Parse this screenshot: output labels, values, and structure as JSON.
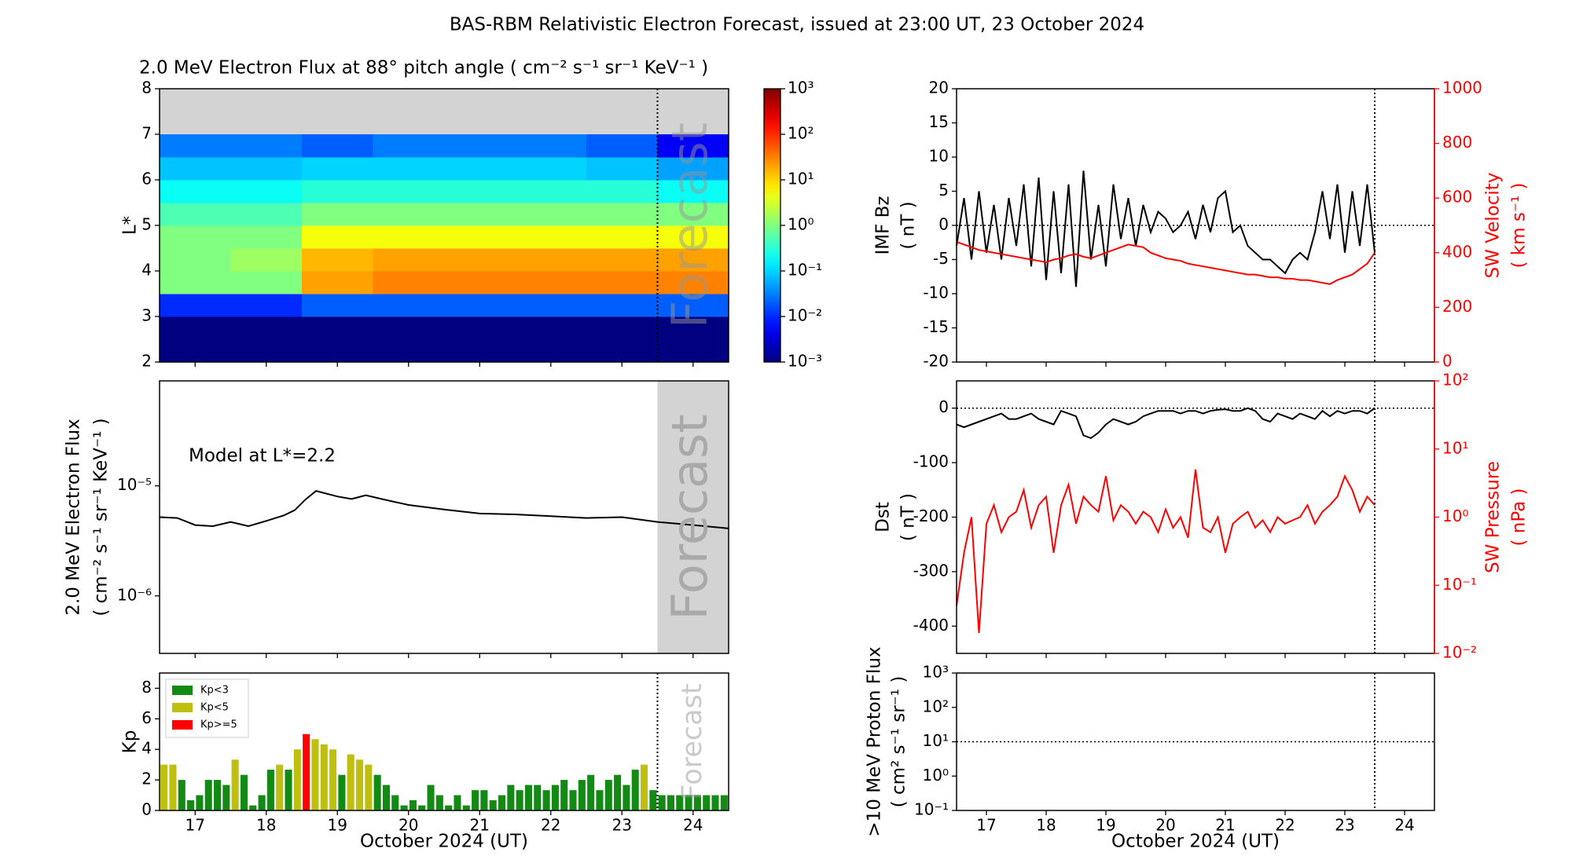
{
  "title": "BAS-RBM Relativistic Electron Forecast, issued at 23:00 UT, 23 October 2024",
  "chart_data": [
    {
      "type": "heatmap",
      "title": "2.0 MeV Electron Flux at 88° pitch angle ( cm⁻² s⁻¹ sr⁻¹ KeV⁻¹ )",
      "y_label": [
        "L*"
      ],
      "xlim": [
        16.5,
        24.5
      ],
      "ylim": [
        2,
        8
      ],
      "yticks": [
        2,
        3,
        4,
        5,
        6,
        7,
        8
      ],
      "x_bins": [
        16.5,
        17.5,
        18.5,
        19.5,
        20.5,
        21.5,
        22.5,
        23.5,
        24.5
      ],
      "y_bins": [
        2,
        2.5,
        3,
        3.5,
        4,
        4.5,
        5,
        5.5,
        6,
        6.5,
        7
      ],
      "values": [
        [
          0.001,
          0.001,
          0.001,
          0.001,
          0.001,
          0.001,
          0.001,
          0.001
        ],
        [
          0.001,
          0.001,
          0.001,
          0.001,
          0.001,
          0.001,
          0.001,
          0.001
        ],
        [
          0.01,
          0.01,
          0.02,
          0.02,
          0.02,
          0.02,
          0.02,
          0.02
        ],
        [
          1,
          1,
          20,
          30,
          30,
          30,
          30,
          30
        ],
        [
          1,
          1.5,
          15,
          20,
          20,
          20,
          20,
          20
        ],
        [
          1,
          1,
          5,
          5,
          5,
          5,
          5,
          5
        ],
        [
          0.5,
          0.5,
          1,
          1,
          1,
          1,
          1,
          1
        ],
        [
          0.2,
          0.2,
          0.3,
          0.3,
          0.3,
          0.3,
          0.3,
          0.2
        ],
        [
          0.08,
          0.08,
          0.1,
          0.1,
          0.1,
          0.1,
          0.08,
          0.05
        ],
        [
          0.03,
          0.03,
          0.02,
          0.03,
          0.03,
          0.03,
          0.02,
          0.005
        ]
      ],
      "colormap": "jet",
      "background": "#d3d3d3",
      "colorbar": {
        "clim": [
          0.001,
          1000
        ],
        "log": true,
        "ticks": [
          {
            "value": 0.001,
            "label": "10⁻³"
          },
          {
            "value": 0.01,
            "label": "10⁻²"
          },
          {
            "value": 0.1,
            "label": "10⁻¹"
          },
          {
            "value": 1,
            "label": "10⁰"
          },
          {
            "value": 10,
            "label": "10¹"
          },
          {
            "value": 100,
            "label": "10²"
          },
          {
            "value": 1000,
            "label": "10³"
          }
        ]
      },
      "forecast_start": 23.5,
      "forecast_label": "Forecast"
    },
    {
      "type": "line",
      "y_label": [
        "2.0 MeV Electron Flux",
        "( cm⁻² s⁻¹ sr⁻¹ KeV⁻¹ )"
      ],
      "annotation": "Model at L*=2.2",
      "xlim": [
        16.5,
        24.5
      ],
      "ylim": [
        3e-07,
        9e-05
      ],
      "ylog": true,
      "yticks": [
        {
          "value": 1e-06,
          "label": "10⁻⁶"
        },
        {
          "value": 1e-05,
          "label": "10⁻⁵"
        }
      ],
      "x": [
        16.5,
        16.75,
        17,
        17.25,
        17.5,
        17.75,
        18,
        18.25,
        18.4,
        18.55,
        18.7,
        19,
        19.2,
        19.4,
        19.7,
        20,
        20.5,
        21,
        21.5,
        22,
        22.5,
        23,
        23.5,
        24,
        24.5
      ],
      "values": [
        5.2e-06,
        5.1e-06,
        4.4e-06,
        4.3e-06,
        4.7e-06,
        4.3e-06,
        4.8e-06,
        5.4e-06,
        6e-06,
        7.5e-06,
        9e-06,
        8e-06,
        7.6e-06,
        8.2e-06,
        7.4e-06,
        6.7e-06,
        6.1e-06,
        5.6e-06,
        5.5e-06,
        5.3e-06,
        5.1e-06,
        5.2e-06,
        4.7e-06,
        4.4e-06,
        4.1e-06
      ],
      "color": "#000000",
      "forecast_start": 23.5,
      "forecast_shading": "#d3d3d3",
      "forecast_label": "Forecast"
    },
    {
      "type": "bar",
      "y_label": [
        "Kp"
      ],
      "x_label": "October 2024 (UT)",
      "xlim": [
        16.5,
        24.5
      ],
      "xticks": [
        17,
        18,
        19,
        20,
        21,
        22,
        23,
        24
      ],
      "ylim": [
        0,
        9
      ],
      "yticks": [
        0,
        2,
        4,
        6,
        8
      ],
      "x": [
        16.5,
        16.625,
        16.75,
        16.875,
        17,
        17.125,
        17.25,
        17.375,
        17.5,
        17.625,
        17.75,
        17.875,
        18,
        18.125,
        18.25,
        18.375,
        18.5,
        18.625,
        18.75,
        18.875,
        19,
        19.125,
        19.25,
        19.375,
        19.5,
        19.625,
        19.75,
        19.875,
        20,
        20.125,
        20.25,
        20.375,
        20.5,
        20.625,
        20.75,
        20.875,
        21,
        21.125,
        21.25,
        21.375,
        21.5,
        21.625,
        21.75,
        21.875,
        22,
        22.125,
        22.25,
        22.375,
        22.5,
        22.625,
        22.75,
        22.875,
        23,
        23.125,
        23.25,
        23.375,
        23.5,
        23.625,
        23.75,
        23.875,
        24,
        24.125,
        24.25,
        24.375
      ],
      "series": [
        {
          "name": "Kp<3",
          "color": "#138a13",
          "values": [
            null,
            null,
            2,
            0.67,
            1,
            2,
            2,
            1.67,
            null,
            2.33,
            0.33,
            1,
            2.67,
            null,
            2.67,
            null,
            null,
            null,
            null,
            null,
            2.33,
            null,
            null,
            null,
            2.33,
            1.67,
            1,
            0.33,
            0.67,
            0.33,
            1.67,
            1,
            0.33,
            1,
            0.33,
            1.33,
            1.33,
            0.67,
            1,
            1.67,
            1.33,
            1.67,
            1.67,
            1.33,
            1.67,
            2,
            1.33,
            2,
            2.33,
            1.33,
            2,
            2.33,
            1.67,
            2.67,
            null,
            1.33,
            1,
            1,
            1,
            1,
            1,
            1,
            1,
            1
          ]
        },
        {
          "name": "Kp<5",
          "color": "#bfbf10",
          "values": [
            3,
            3,
            null,
            null,
            null,
            null,
            null,
            null,
            3.33,
            null,
            null,
            null,
            null,
            3,
            null,
            4,
            null,
            4.67,
            4.33,
            4,
            null,
            3.67,
            3.33,
            3,
            null,
            null,
            null,
            null,
            null,
            null,
            null,
            null,
            null,
            null,
            null,
            null,
            null,
            null,
            null,
            null,
            null,
            null,
            null,
            null,
            null,
            null,
            null,
            null,
            null,
            null,
            null,
            null,
            null,
            null,
            3,
            null,
            null,
            null,
            null,
            null,
            null,
            null,
            null,
            null
          ]
        },
        {
          "name": "Kp>=5",
          "color": "#ff0000",
          "values": [
            null,
            null,
            null,
            null,
            null,
            null,
            null,
            null,
            null,
            null,
            null,
            null,
            null,
            null,
            null,
            null,
            5,
            null,
            null,
            null,
            null,
            null,
            null,
            null,
            null,
            null,
            null,
            null,
            null,
            null,
            null,
            null,
            null,
            null,
            null,
            null,
            null,
            null,
            null,
            null,
            null,
            null,
            null,
            null,
            null,
            null,
            null,
            null,
            null,
            null,
            null,
            null,
            null,
            null,
            null,
            null,
            null,
            null,
            null,
            null,
            null,
            null,
            null,
            null
          ]
        }
      ],
      "legend": "upper left",
      "forecast_start": 23.5,
      "forecast_label": "Forecast"
    },
    {
      "type": "line",
      "y_label": [
        "IMF Bz",
        "( nT )"
      ],
      "y2_label": [
        "SW Velocity",
        "( km s⁻¹ )"
      ],
      "xlim": [
        16.5,
        24.5
      ],
      "ylim": [
        -20,
        20
      ],
      "yticks": [
        -20,
        -15,
        -10,
        -5,
        0,
        5,
        10,
        15,
        20
      ],
      "y2lim": [
        0,
        1000
      ],
      "y2ticks": [
        0,
        200,
        400,
        600,
        800,
        1000
      ],
      "y2color": "#ff0000",
      "x": [
        16.5,
        16.625,
        16.75,
        16.875,
        17,
        17.125,
        17.25,
        17.375,
        17.5,
        17.625,
        17.75,
        17.875,
        18,
        18.125,
        18.25,
        18.375,
        18.5,
        18.625,
        18.75,
        18.875,
        19,
        19.125,
        19.25,
        19.375,
        19.5,
        19.625,
        19.75,
        19.875,
        20,
        20.125,
        20.25,
        20.375,
        20.5,
        20.625,
        20.75,
        20.875,
        21,
        21.125,
        21.25,
        21.375,
        21.5,
        21.625,
        21.75,
        21.875,
        22,
        22.125,
        22.25,
        22.375,
        22.5,
        22.625,
        22.75,
        22.875,
        23,
        23.125,
        23.25,
        23.375,
        23.5
      ],
      "series": [
        {
          "color": "#000000",
          "values": [
            -3,
            4,
            -5,
            5,
            -4,
            3,
            -5,
            4,
            -3,
            6,
            -6,
            7,
            -8,
            5,
            -7,
            6,
            -9,
            8,
            -5,
            3,
            -6,
            6,
            -2,
            4,
            -3,
            3,
            -1,
            2,
            1,
            -1,
            0,
            2,
            -2,
            3,
            -1,
            4,
            5,
            -1,
            0,
            -3,
            -4,
            -5,
            -5,
            -6,
            -7,
            -5,
            -4,
            -5,
            -1,
            5,
            -2,
            6,
            -4,
            5,
            -3,
            6,
            -4
          ]
        },
        {
          "color": "#ff0000",
          "axis": "y2",
          "values": [
            440,
            430,
            420,
            410,
            405,
            400,
            395,
            390,
            385,
            380,
            375,
            370,
            365,
            375,
            380,
            390,
            395,
            385,
            380,
            390,
            400,
            410,
            420,
            430,
            425,
            420,
            400,
            390,
            380,
            375,
            370,
            360,
            355,
            350,
            345,
            340,
            335,
            330,
            325,
            320,
            320,
            315,
            310,
            310,
            305,
            305,
            300,
            300,
            295,
            290,
            285,
            300,
            310,
            320,
            340,
            360,
            400
          ]
        }
      ],
      "hline": 0,
      "forecast_start": 23.5
    },
    {
      "type": "line",
      "y_label": [
        "Dst",
        "( nT )"
      ],
      "y2_label": [
        "SW Pressure",
        "( nPa )"
      ],
      "xlim": [
        16.5,
        24.5
      ],
      "ylim": [
        -450,
        50
      ],
      "yticks": [
        -400,
        -300,
        -200,
        -100,
        0
      ],
      "y2lim": [
        0.01,
        100
      ],
      "y2log": true,
      "y2color": "#ff0000",
      "y2ticks": [
        {
          "value": 0.01,
          "label": "10⁻²"
        },
        {
          "value": 0.1,
          "label": "10⁻¹"
        },
        {
          "value": 1,
          "label": "10⁰"
        },
        {
          "value": 10,
          "label": "10¹"
        },
        {
          "value": 100,
          "label": "10²"
        }
      ],
      "x": [
        16.5,
        16.625,
        16.75,
        16.875,
        17,
        17.125,
        17.25,
        17.375,
        17.5,
        17.625,
        17.75,
        17.875,
        18,
        18.125,
        18.25,
        18.375,
        18.5,
        18.625,
        18.75,
        18.875,
        19,
        19.125,
        19.25,
        19.375,
        19.5,
        19.625,
        19.75,
        19.875,
        20,
        20.125,
        20.25,
        20.375,
        20.5,
        20.625,
        20.75,
        20.875,
        21,
        21.125,
        21.25,
        21.375,
        21.5,
        21.625,
        21.75,
        21.875,
        22,
        22.125,
        22.25,
        22.375,
        22.5,
        22.625,
        22.75,
        22.875,
        23,
        23.125,
        23.25,
        23.375,
        23.5
      ],
      "series": [
        {
          "color": "#000000",
          "values": [
            -30,
            -35,
            -30,
            -25,
            -20,
            -15,
            -10,
            -20,
            -20,
            -15,
            -10,
            -20,
            -25,
            -30,
            -5,
            -10,
            -15,
            -50,
            -55,
            -45,
            -30,
            -20,
            -25,
            -30,
            -25,
            -15,
            -10,
            -5,
            -5,
            -5,
            -10,
            -5,
            -5,
            -10,
            -5,
            -3,
            -2,
            -5,
            -5,
            0,
            -5,
            -20,
            -25,
            -10,
            -15,
            -20,
            -10,
            -15,
            -20,
            -5,
            -15,
            -5,
            -10,
            -5,
            -5,
            -10,
            0
          ]
        },
        {
          "color": "#ff0000",
          "axis": "y2",
          "values": [
            0.05,
            0.3,
            1,
            0.02,
            0.8,
            1.5,
            0.6,
            1.0,
            1.2,
            2.5,
            0.7,
            1.5,
            2,
            0.3,
            1.5,
            3,
            0.8,
            2,
            1.5,
            1.2,
            4,
            0.9,
            1.5,
            1.2,
            0.8,
            1.2,
            1.0,
            0.6,
            1.3,
            0.7,
            1.0,
            0.5,
            5,
            0.7,
            0.6,
            1.0,
            0.3,
            0.8,
            1.0,
            1.2,
            0.7,
            0.9,
            0.6,
            1.0,
            0.8,
            0.9,
            1.0,
            1.5,
            0.8,
            1.2,
            1.5,
            2,
            4,
            2.5,
            1.2,
            2,
            1.5
          ]
        }
      ],
      "hline": 0,
      "forecast_start": 23.5
    },
    {
      "type": "line",
      "y_label": [
        ">10 MeV Proton Flux",
        "( cm² s⁻¹ sr⁻¹ )"
      ],
      "x_label": "October 2024 (UT)",
      "xlim": [
        16.5,
        24.5
      ],
      "xticks": [
        17,
        18,
        19,
        20,
        21,
        22,
        23,
        24
      ],
      "ylim": [
        0.1,
        1000
      ],
      "ylog": true,
      "yticks": [
        {
          "value": 0.1,
          "label": "10⁻¹"
        },
        {
          "value": 1,
          "label": "10⁰"
        },
        {
          "value": 10,
          "label": "10¹"
        },
        {
          "value": 100,
          "label": "10²"
        },
        {
          "value": 1000,
          "label": "10³"
        }
      ],
      "series": [],
      "hline": 10,
      "forecast_start": 23.5
    }
  ]
}
